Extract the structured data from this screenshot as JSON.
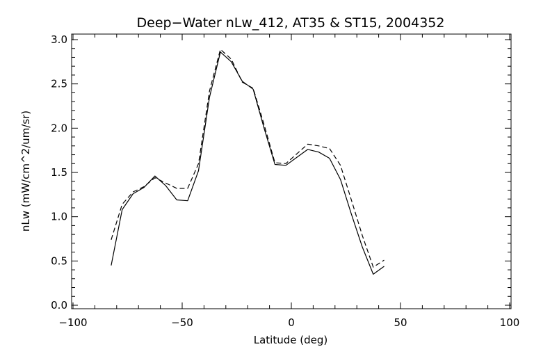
{
  "chart_data": {
    "type": "line",
    "title": "Deep−Water nLw_412, AT35 & ST15, 2004352",
    "xlabel": "Latitude (deg)",
    "ylabel": "nLw (mW/cm^2/um/sr)",
    "xlim": [
      -100,
      100
    ],
    "ylim": [
      0.0,
      3.0
    ],
    "xticks": [
      -100,
      -50,
      0,
      50,
      100
    ],
    "xtick_labels": [
      "−100",
      "−50",
      "0",
      "50",
      "100"
    ],
    "yticks": [
      0.0,
      0.5,
      1.0,
      1.5,
      2.0,
      2.5,
      3.0
    ],
    "ytick_labels": [
      "0.0",
      "0.5",
      "1.0",
      "1.5",
      "2.0",
      "2.5",
      "3.0"
    ],
    "grid": false,
    "series": [
      {
        "style": "solid",
        "x": [
          -82.5,
          -77.5,
          -72.5,
          -67.5,
          -62.5,
          -57.5,
          -52.5,
          -47.5,
          -42.5,
          -37.5,
          -32.5,
          -27.5,
          -22.5,
          -17.5,
          -12.5,
          -7.5,
          -2.5,
          2.5,
          7.5,
          12.5,
          17.5,
          22.5,
          27.5,
          32.5,
          37.5,
          42.5
        ],
        "y": [
          0.45,
          1.08,
          1.26,
          1.33,
          1.46,
          1.35,
          1.19,
          1.18,
          1.52,
          2.35,
          2.86,
          2.75,
          2.53,
          2.44,
          2.0,
          1.59,
          1.58,
          1.67,
          1.76,
          1.73,
          1.66,
          1.42,
          1.03,
          0.66,
          0.35,
          0.44
        ]
      },
      {
        "style": "dashed",
        "x": [
          -82.5,
          -77.5,
          -72.5,
          -67.5,
          -62.5,
          -57.5,
          -52.5,
          -47.5,
          -42.5,
          -37.5,
          -32.5,
          -27.5,
          -22.5,
          -17.5,
          -12.5,
          -7.5,
          -2.5,
          2.5,
          7.5,
          12.5,
          17.5,
          22.5,
          27.5,
          32.5,
          37.5,
          42.5
        ],
        "y": [
          0.74,
          1.14,
          1.28,
          1.34,
          1.44,
          1.38,
          1.32,
          1.32,
          1.6,
          2.42,
          2.89,
          2.78,
          2.52,
          2.45,
          2.04,
          1.61,
          1.6,
          1.71,
          1.82,
          1.8,
          1.77,
          1.58,
          1.19,
          0.79,
          0.43,
          0.51
        ]
      }
    ]
  }
}
